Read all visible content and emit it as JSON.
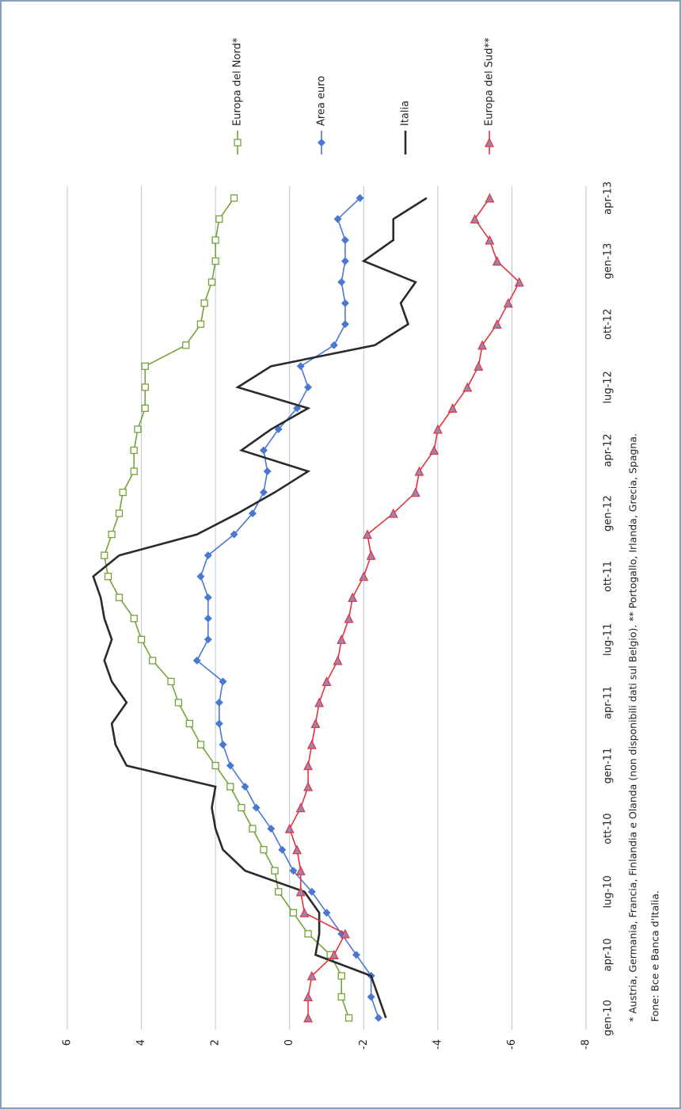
{
  "chart_data": {
    "type": "line",
    "categories": [
      "gen-10",
      null,
      null,
      "apr-10",
      null,
      null,
      "lug-10",
      null,
      null,
      "ott-10",
      null,
      null,
      "gen-11",
      null,
      null,
      "apr-11",
      null,
      null,
      "lug-11",
      null,
      null,
      "ott-11",
      null,
      null,
      "gen-12",
      null,
      null,
      "apr-12",
      null,
      null,
      "lug-12",
      null,
      null,
      "ott-12",
      null,
      null,
      "gen-13",
      null,
      null,
      "apr-13"
    ],
    "ylim": [
      -8,
      6
    ],
    "yticks": [
      -8,
      -6,
      -4,
      -2,
      0,
      2,
      4,
      6
    ],
    "grid": true,
    "series": [
      {
        "name": "Europa del Nord*",
        "color": "#76a23a",
        "marker": "square",
        "values": [
          -1.6,
          -1.4,
          -1.4,
          -1.1,
          -0.5,
          -0.1,
          0.3,
          0.4,
          0.7,
          1.0,
          1.3,
          1.6,
          2.0,
          2.4,
          2.7,
          3.0,
          3.2,
          3.7,
          4.0,
          4.2,
          4.6,
          4.9,
          5.0,
          4.8,
          4.6,
          4.5,
          4.2,
          4.2,
          4.1,
          3.9,
          3.9,
          3.9,
          2.8,
          2.4,
          2.3,
          2.1,
          2.0,
          2.0,
          1.9,
          1.5
        ]
      },
      {
        "name": "Area euro",
        "color": "#4a78d0",
        "marker": "diamond",
        "values": [
          -2.4,
          -2.2,
          -2.2,
          -1.8,
          -1.4,
          -1.0,
          -0.6,
          -0.1,
          0.2,
          0.5,
          0.9,
          1.2,
          1.6,
          1.8,
          1.9,
          1.9,
          1.8,
          2.5,
          2.2,
          2.2,
          2.2,
          2.4,
          2.2,
          1.5,
          1.0,
          0.7,
          0.6,
          0.7,
          0.3,
          -0.2,
          -0.5,
          -0.3,
          -1.2,
          -1.5,
          -1.5,
          -1.4,
          -1.5,
          -1.5,
          -1.3,
          -1.9
        ]
      },
      {
        "name": "Italia",
        "color": "#2a2a2a",
        "marker": "none",
        "values": [
          -2.6,
          -2.4,
          -2.2,
          -0.7,
          -0.8,
          -0.8,
          -0.4,
          1.2,
          1.8,
          2.0,
          2.1,
          2.0,
          4.4,
          4.7,
          4.8,
          4.4,
          4.8,
          5.0,
          4.8,
          5.0,
          5.1,
          5.3,
          4.6,
          2.5,
          1.4,
          0.4,
          -0.5,
          1.3,
          0.5,
          -0.5,
          1.4,
          0.5,
          -2.3,
          -3.2,
          -3.0,
          -3.4,
          -2.0,
          -2.8,
          -2.8,
          -3.7
        ]
      },
      {
        "name": "Europa del Sud**",
        "color": "#e3343c",
        "marker": "triangle",
        "values": [
          -0.5,
          -0.5,
          -0.6,
          -1.2,
          -1.5,
          -0.4,
          -0.3,
          -0.3,
          -0.2,
          0.0,
          -0.3,
          -0.5,
          -0.5,
          -0.6,
          -0.7,
          -0.8,
          -1.0,
          -1.3,
          -1.4,
          -1.6,
          -1.7,
          -2.0,
          -2.2,
          -2.1,
          -2.8,
          -3.4,
          -3.5,
          -3.9,
          -4.0,
          -4.4,
          -4.8,
          -5.1,
          -5.2,
          -5.6,
          -5.9,
          -6.2,
          -5.6,
          -5.4,
          -5.0,
          -5.4
        ]
      }
    ],
    "notes": [
      "* Austria, Germania, Francia, Finlandia e Olanda (non disponibili dati sul Belgio). ** Portogallo, Irlanda, Grecia, Spagna.",
      "Fone: Bce e Banca d'Italia."
    ]
  }
}
